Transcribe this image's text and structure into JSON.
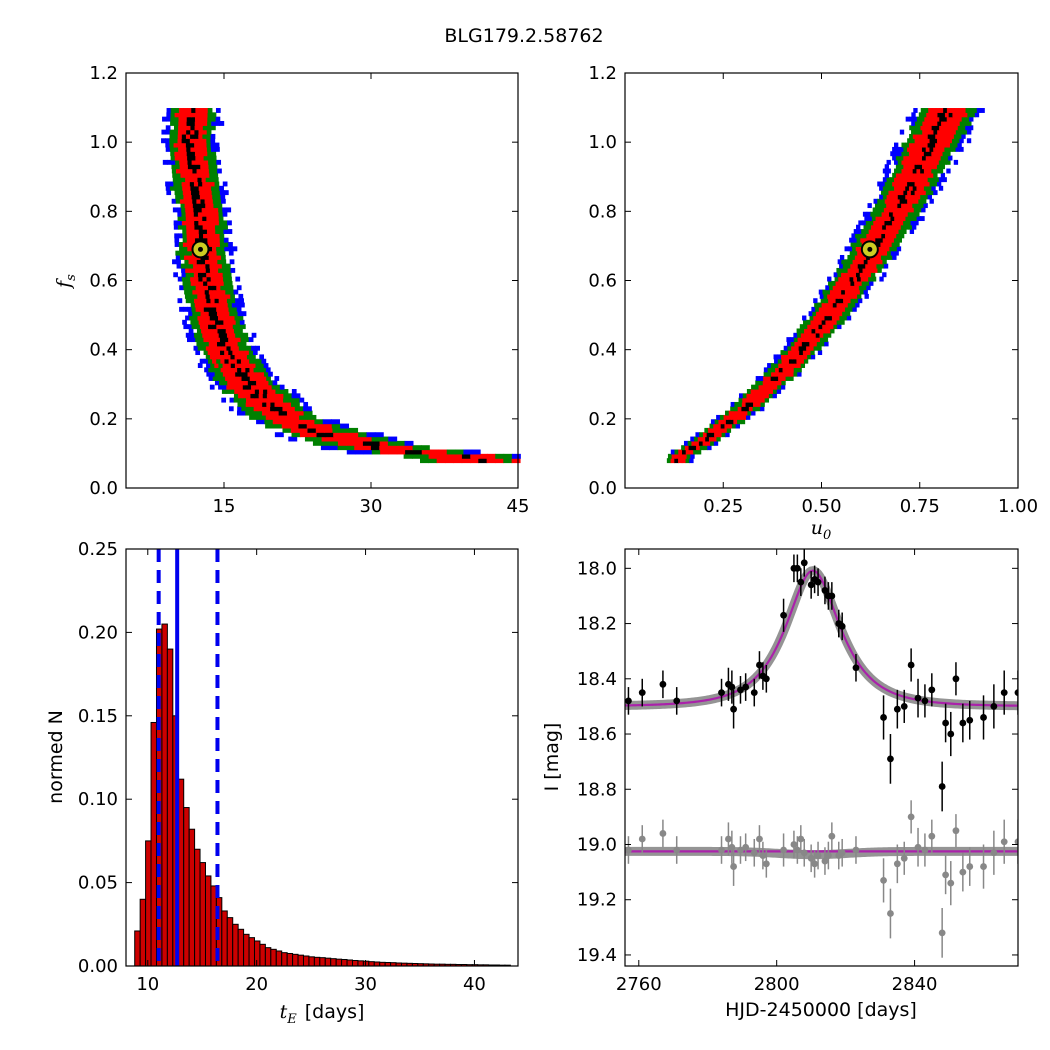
{
  "figure_title": "BLG179.2.58762",
  "colors": {
    "outer": "#0000ff",
    "mid": "#008000",
    "inner": "#ff0000",
    "core": "#000000",
    "model": "#aa22aa",
    "model_band": "#888888",
    "residual": "#888888",
    "best_fit_fill": "#cccc22",
    "hist_fill": "#cc0000",
    "median_line": "#0000ee"
  },
  "chart_data": [
    {
      "type": "heatmap",
      "panel": "top-left",
      "xlabel": "",
      "ylabel": "f_s",
      "ylabel_base": "f",
      "ylabel_sub": "s",
      "xlim": [
        5,
        45
      ],
      "ylim": [
        0.0,
        1.2
      ],
      "xticks": [
        "15",
        "30",
        "45"
      ],
      "yticks": [
        "0.0",
        "0.2",
        "0.4",
        "0.6",
        "0.8",
        "1.0",
        "1.2"
      ],
      "best_fit": {
        "x": 12.6,
        "y": 0.69
      },
      "ridge": [
        [
          11.6,
          1.1
        ],
        [
          11.4,
          1.0
        ],
        [
          11.8,
          0.9
        ],
        [
          12.4,
          0.8
        ],
        [
          12.6,
          0.7
        ],
        [
          13.0,
          0.6
        ],
        [
          13.8,
          0.5
        ],
        [
          15.0,
          0.4
        ],
        [
          17.2,
          0.3
        ],
        [
          21.0,
          0.2
        ],
        [
          25.5,
          0.15
        ],
        [
          32.0,
          0.11
        ],
        [
          40.0,
          0.09
        ]
      ],
      "grid": false
    },
    {
      "type": "heatmap",
      "panel": "top-right",
      "xlabel": "u_0",
      "xlabel_base": "u",
      "xlabel_sub": "0",
      "ylabel": "",
      "xlim": [
        0.0,
        1.0
      ],
      "ylim": [
        0.0,
        1.2
      ],
      "xticks": [
        "0.25",
        "0.50",
        "0.75",
        "1.00"
      ],
      "yticks": [
        "0.0",
        "0.2",
        "0.4",
        "0.6",
        "0.8",
        "1.0",
        "1.2"
      ],
      "best_fit": {
        "x": 0.623,
        "y": 0.69
      },
      "ridge": [
        [
          0.13,
          0.09
        ],
        [
          0.2,
          0.14
        ],
        [
          0.3,
          0.23
        ],
        [
          0.4,
          0.34
        ],
        [
          0.5,
          0.48
        ],
        [
          0.6,
          0.64
        ],
        [
          0.7,
          0.83
        ],
        [
          0.77,
          0.99
        ],
        [
          0.82,
          1.1
        ]
      ],
      "grid": false
    },
    {
      "type": "bar",
      "panel": "bottom-left",
      "xlabel": "[days]",
      "xlabel_base": "t",
      "xlabel_sub": "E",
      "ylabel": "normed N",
      "xlim": [
        8,
        44
      ],
      "ylim": [
        0.0,
        0.25
      ],
      "xticks": [
        "10",
        "20",
        "30",
        "40"
      ],
      "yticks": [
        "0.00",
        "0.05",
        "0.10",
        "0.15",
        "0.20",
        "0.25"
      ],
      "bin_start": 8.8,
      "bin_width": 0.5,
      "values": [
        0.021,
        0.04,
        0.075,
        0.146,
        0.202,
        0.205,
        0.19,
        0.15,
        0.112,
        0.095,
        0.082,
        0.07,
        0.062,
        0.054,
        0.048,
        0.041,
        0.033,
        0.029,
        0.025,
        0.022,
        0.019,
        0.017,
        0.015,
        0.013,
        0.011,
        0.01,
        0.009,
        0.008,
        0.0075,
        0.007,
        0.0065,
        0.006,
        0.0055,
        0.0052,
        0.005,
        0.0047,
        0.0044,
        0.0041,
        0.0039,
        0.0036,
        0.0033,
        0.0031,
        0.0029,
        0.0026,
        0.0024,
        0.0022,
        0.0021,
        0.002,
        0.0018,
        0.0017,
        0.0016,
        0.0015,
        0.0014,
        0.0013,
        0.0012,
        0.0011,
        0.0011,
        0.001,
        0.001,
        0.0009,
        0.0009,
        0.0008,
        0.0008,
        0.0007,
        0.0007,
        0.0006,
        0.0006,
        0.0005,
        0.0005
      ],
      "median": 12.7,
      "bounds": [
        11.0,
        16.4
      ]
    },
    {
      "type": "scatter",
      "panel": "bottom-right",
      "xlabel": "HJD-2450000 [days]",
      "ylabel": "I [mag]",
      "xlim": [
        2756,
        2870
      ],
      "ylim": [
        19.44,
        17.93
      ],
      "xticks": [
        "2760",
        "2800",
        "2840"
      ],
      "yticks": [
        "18.0",
        "18.2",
        "18.4",
        "18.6",
        "18.8",
        "19.0",
        "19.2",
        "19.4"
      ],
      "model": {
        "t0": 2810.5,
        "tE": 12.7,
        "u0": 0.623,
        "fs": 0.69,
        "base_mag": 18.5
      },
      "residual_offset": 19.025,
      "series": [
        {
          "name": "",
          "x": [
            2757,
            2761,
            2767,
            2771,
            2784,
            2786,
            2787,
            2787.5,
            2789.5,
            2791,
            2793.5,
            2795,
            2796,
            2797,
            2802,
            2805,
            2806,
            2807,
            2808,
            2810,
            2811,
            2812,
            2814,
            2815,
            2816,
            2818,
            2819,
            2823,
            2831,
            2833,
            2835,
            2837,
            2839,
            2841,
            2843,
            2845,
            2848,
            2849,
            2850.5,
            2852,
            2854,
            2856,
            2860,
            2863,
            2866,
            2870
          ],
          "y": [
            18.48,
            18.45,
            18.42,
            18.48,
            18.45,
            18.42,
            18.43,
            18.51,
            18.44,
            18.43,
            18.45,
            18.35,
            18.39,
            18.4,
            18.17,
            18.0,
            18.0,
            18.05,
            17.98,
            18.06,
            18.04,
            18.05,
            18.08,
            18.1,
            18.1,
            18.2,
            18.21,
            18.36,
            18.54,
            18.69,
            18.51,
            18.5,
            18.35,
            18.47,
            18.48,
            18.44,
            18.79,
            18.56,
            18.6,
            18.4,
            18.56,
            18.55,
            18.54,
            18.5,
            18.45,
            18.45
          ],
          "err": [
            0.05,
            0.05,
            0.05,
            0.05,
            0.05,
            0.06,
            0.06,
            0.07,
            0.05,
            0.05,
            0.05,
            0.05,
            0.05,
            0.05,
            0.06,
            0.05,
            0.05,
            0.05,
            0.05,
            0.05,
            0.05,
            0.05,
            0.05,
            0.05,
            0.05,
            0.05,
            0.05,
            0.05,
            0.08,
            0.09,
            0.07,
            0.06,
            0.06,
            0.07,
            0.06,
            0.06,
            0.09,
            0.07,
            0.08,
            0.06,
            0.07,
            0.07,
            0.08,
            0.08,
            0.08,
            0.08
          ]
        },
        {
          "name": "",
          "x": [
            2757,
            2761,
            2767,
            2771,
            2784,
            2786,
            2787,
            2787.5,
            2789.5,
            2791,
            2793.5,
            2795,
            2796,
            2797,
            2802,
            2805,
            2806,
            2807,
            2808,
            2810,
            2811,
            2812,
            2814,
            2815,
            2816,
            2818,
            2819,
            2823,
            2831,
            2833,
            2835,
            2837,
            2839,
            2841,
            2843,
            2845,
            2848,
            2849,
            2850.5,
            2852,
            2854,
            2856,
            2860,
            2863,
            2866,
            2870
          ],
          "y": [
            19.02,
            18.98,
            18.96,
            19.02,
            19.02,
            18.98,
            19.01,
            19.08,
            19.02,
            19.01,
            19.03,
            18.98,
            19.04,
            19.07,
            19.02,
            19.0,
            19.02,
            18.98,
            19.03,
            19.05,
            19.07,
            19.04,
            19.06,
            19.04,
            18.97,
            19.04,
            19.03,
            19.02,
            19.13,
            19.25,
            19.07,
            19.05,
            18.9,
            19.01,
            19.02,
            18.97,
            19.32,
            19.11,
            19.14,
            18.95,
            19.1,
            19.08,
            19.08,
            19.03,
            18.99,
            18.99
          ],
          "err": [
            0.05,
            0.05,
            0.05,
            0.05,
            0.05,
            0.06,
            0.06,
            0.07,
            0.05,
            0.05,
            0.05,
            0.05,
            0.05,
            0.05,
            0.06,
            0.05,
            0.05,
            0.05,
            0.05,
            0.05,
            0.05,
            0.05,
            0.05,
            0.05,
            0.05,
            0.05,
            0.05,
            0.05,
            0.08,
            0.09,
            0.07,
            0.06,
            0.06,
            0.07,
            0.06,
            0.06,
            0.09,
            0.07,
            0.08,
            0.06,
            0.07,
            0.07,
            0.08,
            0.08,
            0.08,
            0.08
          ]
        }
      ]
    }
  ]
}
